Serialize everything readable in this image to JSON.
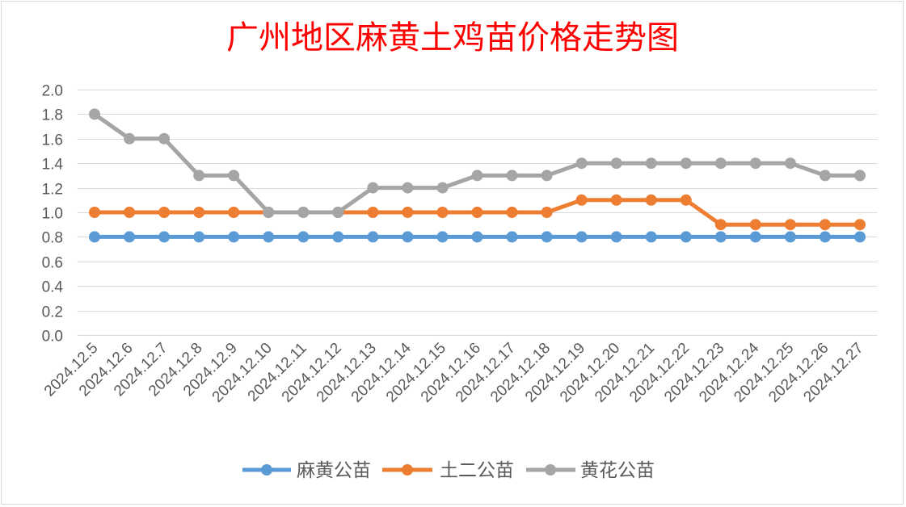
{
  "chart_data": {
    "type": "line",
    "title": "广州地区麻黄土鸡苗价格走势图",
    "title_color": "#FF0000",
    "xlabel": "",
    "ylabel": "",
    "ylim": [
      0,
      2.0
    ],
    "yticks": [
      "0.0",
      "0.2",
      "0.4",
      "0.6",
      "0.8",
      "1.0",
      "1.2",
      "1.4",
      "1.6",
      "1.8",
      "2.0"
    ],
    "grid": true,
    "legend": "bottom",
    "categories": [
      "2024.12.5",
      "2024.12.6",
      "2024.12.7",
      "2024.12.8",
      "2024.12.9",
      "2024.12.10",
      "2024.12.11",
      "2024.12.12",
      "2024.12.13",
      "2024.12.14",
      "2024.12.15",
      "2024.12.16",
      "2024.12.17",
      "2024.12.18",
      "2024.12.19",
      "2024.12.20",
      "2024.12.21",
      "2024.12.22",
      "2024.12.23",
      "2024.12.24",
      "2024.12.25",
      "2024.12.26",
      "2024.12.27"
    ],
    "series": [
      {
        "name": "麻黄公苗",
        "color": "#5B9BD5",
        "values": [
          0.8,
          0.8,
          0.8,
          0.8,
          0.8,
          0.8,
          0.8,
          0.8,
          0.8,
          0.8,
          0.8,
          0.8,
          0.8,
          0.8,
          0.8,
          0.8,
          0.8,
          0.8,
          0.8,
          0.8,
          0.8,
          0.8,
          0.8
        ]
      },
      {
        "name": "土二公苗",
        "color": "#ED7D31",
        "values": [
          1.0,
          1.0,
          1.0,
          1.0,
          1.0,
          1.0,
          1.0,
          1.0,
          1.0,
          1.0,
          1.0,
          1.0,
          1.0,
          1.0,
          1.1,
          1.1,
          1.1,
          1.1,
          0.9,
          0.9,
          0.9,
          0.9,
          0.9
        ]
      },
      {
        "name": "黄花公苗",
        "color": "#A5A5A5",
        "values": [
          1.8,
          1.6,
          1.6,
          1.3,
          1.3,
          1.0,
          1.0,
          1.0,
          1.2,
          1.2,
          1.2,
          1.3,
          1.3,
          1.3,
          1.4,
          1.4,
          1.4,
          1.4,
          1.4,
          1.4,
          1.4,
          1.3,
          1.3
        ]
      }
    ]
  }
}
